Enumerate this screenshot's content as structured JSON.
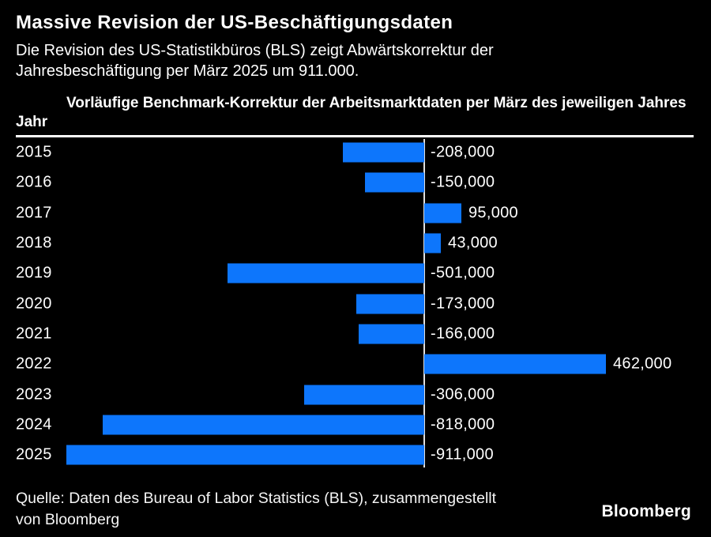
{
  "header": {
    "title": "Massive Revision der US-Beschäftigungsdaten",
    "subtitle_lines": [
      "Die Revision des US-Statistikbüros (BLS) zeigt Abwärtskorrektur der",
      "Jahresbeschäftigung per März 2025 um 911.000."
    ]
  },
  "table_header": {
    "year_col": "Jahr",
    "value_col": "Vorläufige Benchmark-Korrektur der Arbeitsmarktdaten per März des jeweiligen Jahres"
  },
  "chart_data": {
    "type": "bar",
    "orientation": "horizontal",
    "title": "Vorläufige Benchmark-Korrektur der Arbeitsmarktdaten per März des jeweiligen Jahres",
    "categories": [
      "2015",
      "2016",
      "2017",
      "2018",
      "2019",
      "2020",
      "2021",
      "2022",
      "2023",
      "2024",
      "2025"
    ],
    "values": [
      -208000,
      -150000,
      95000,
      43000,
      -501000,
      -173000,
      -166000,
      462000,
      -306000,
      -818000,
      -911000
    ],
    "labels": [
      "-208,000",
      "-150,000",
      "95,000",
      "43,000",
      "-501,000",
      "-173,000",
      "-166,000",
      "462,000",
      "-306,000",
      "-818,000",
      "-911,000"
    ],
    "xlim": [
      -911000,
      462000
    ],
    "zero_line": true,
    "grid": false,
    "legend": "none",
    "bar_color": "#0d76fc"
  },
  "footer": {
    "source_lines": [
      "Quelle: Daten des Bureau of Labor Statistics (BLS), zusammengestellt",
      "von Bloomberg"
    ],
    "brand": "Bloomberg"
  },
  "colors": {
    "background": "#000000",
    "text": "#ffffff",
    "bar": "#0d76fc",
    "separator": "#ffffff",
    "zero_line": "#e0e0e0"
  }
}
